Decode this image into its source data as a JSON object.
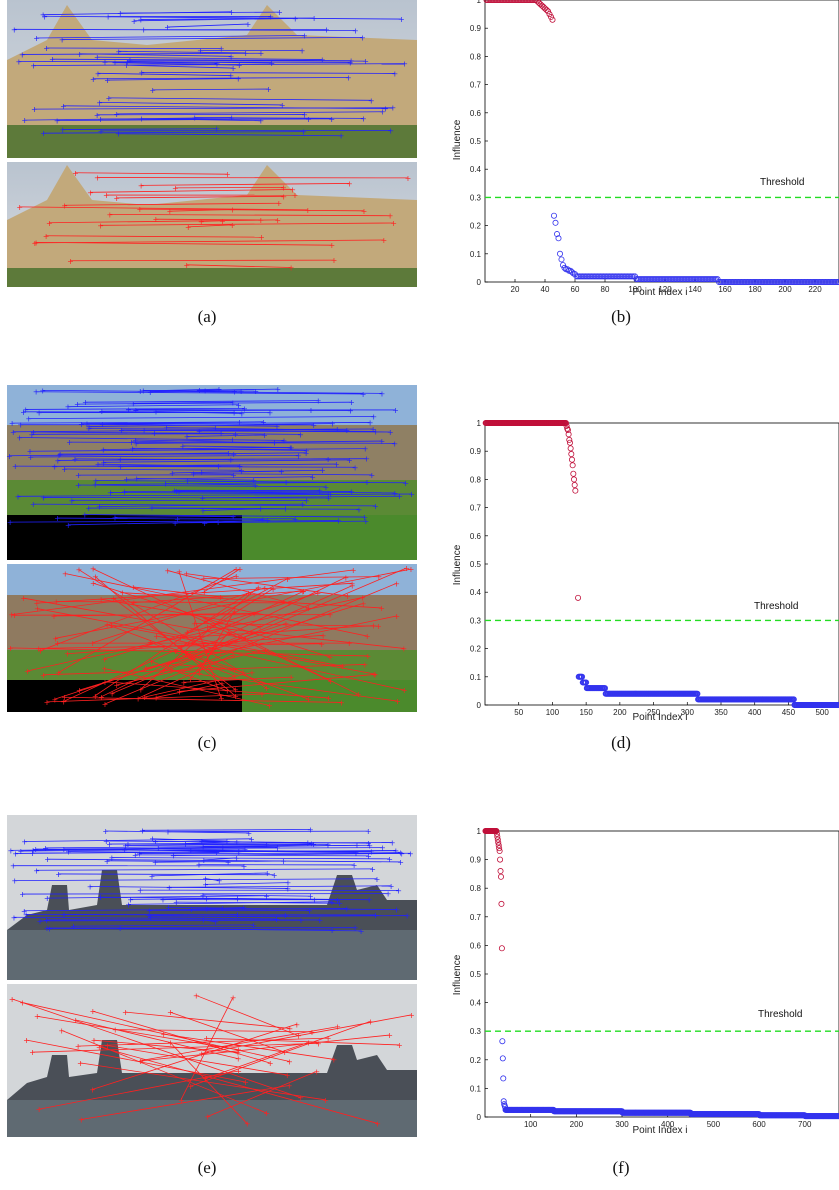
{
  "captions": [
    "(a)",
    "(b)",
    "(c)",
    "(d)",
    "(e)",
    "(f)"
  ],
  "match_images": [
    {
      "scene": "building",
      "colors": {
        "inlier": "#2020ff",
        "outlier": "#ff2020"
      }
    },
    {
      "scene": "campus",
      "colors": {
        "inlier": "#2020ff",
        "outlier": "#ff2020"
      }
    },
    {
      "scene": "skyline",
      "colors": {
        "inlier": "#2020ff",
        "outlier": "#ff2020"
      }
    }
  ],
  "colors": {
    "inlier_marker": "#3333ee",
    "outlier_marker": "#c0103a",
    "threshold_line": "#22dd22",
    "axis": "#000000"
  },
  "chart_data": [
    {
      "type": "scatter",
      "xlabel": "Point Index i",
      "ylabel": "Influence",
      "xlim": [
        0,
        236
      ],
      "ylim": [
        0,
        1
      ],
      "xticks": [
        20,
        40,
        60,
        80,
        100,
        120,
        140,
        160,
        180,
        200,
        220
      ],
      "yticks": [
        0,
        0.1,
        0.2,
        0.3,
        0.4,
        0.5,
        0.6,
        0.7,
        0.8,
        0.9,
        1
      ],
      "threshold": {
        "value": 0.3,
        "label": "Threshold"
      },
      "series": [
        {
          "segments": [
            [
              1,
              34,
              1.0
            ],
            [
              35,
              35,
              0.995
            ],
            [
              36,
              36,
              0.99
            ],
            [
              37,
              37,
              0.985
            ],
            [
              38,
              38,
              0.98
            ],
            [
              39,
              39,
              0.975
            ],
            [
              40,
              40,
              0.97
            ],
            [
              41,
              41,
              0.965
            ],
            [
              42,
              42,
              0.96
            ],
            [
              43,
              43,
              0.95
            ],
            [
              44,
              44,
              0.94
            ],
            [
              45,
              45,
              0.93
            ]
          ]
        },
        {
          "segments": [
            [
              46,
              46,
              0.235
            ],
            [
              47,
              47,
              0.21
            ],
            [
              48,
              48,
              0.17
            ],
            [
              49,
              49,
              0.155
            ],
            [
              50,
              50,
              0.1
            ],
            [
              51,
              51,
              0.08
            ],
            [
              52,
              52,
              0.06
            ],
            [
              53,
              53,
              0.05
            ],
            [
              54,
              54,
              0.045
            ],
            [
              55,
              55,
              0.045
            ],
            [
              56,
              56,
              0.04
            ],
            [
              57,
              57,
              0.04
            ],
            [
              58,
              58,
              0.035
            ],
            [
              59,
              59,
              0.03
            ],
            [
              60,
              60,
              0.028
            ],
            [
              61,
              100,
              0.02
            ],
            [
              101,
              155,
              0.01
            ],
            [
              156,
              236,
              0.0
            ]
          ]
        }
      ]
    },
    {
      "type": "scatter",
      "xlabel": "Point Index i",
      "ylabel": "Influence",
      "xlim": [
        0,
        525
      ],
      "ylim": [
        0,
        1
      ],
      "xticks": [
        50,
        100,
        150,
        200,
        250,
        300,
        350,
        400,
        450,
        500
      ],
      "yticks": [
        0,
        0.1,
        0.2,
        0.3,
        0.4,
        0.5,
        0.6,
        0.7,
        0.8,
        0.9,
        1
      ],
      "threshold": {
        "value": 0.3,
        "label": "Threshold"
      },
      "series": [
        {
          "segments": [
            [
              1,
              120,
              1.0
            ],
            [
              121,
              121,
              0.99
            ],
            [
              122,
              122,
              0.98
            ],
            [
              123,
              123,
              0.975
            ],
            [
              124,
              124,
              0.96
            ],
            [
              125,
              125,
              0.94
            ],
            [
              126,
              126,
              0.93
            ],
            [
              127,
              127,
              0.91
            ],
            [
              128,
              128,
              0.89
            ],
            [
              129,
              129,
              0.87
            ],
            [
              130,
              130,
              0.85
            ],
            [
              131,
              131,
              0.82
            ],
            [
              132,
              132,
              0.8
            ],
            [
              133,
              133,
              0.78
            ],
            [
              134,
              134,
              0.76
            ],
            [
              138,
              138,
              0.38
            ]
          ]
        },
        {
          "segments": [
            [
              139,
              144,
              0.1
            ],
            [
              145,
              150,
              0.08
            ],
            [
              151,
              178,
              0.06
            ],
            [
              179,
              315,
              0.04
            ],
            [
              316,
              458,
              0.02
            ],
            [
              459,
              525,
              0.0
            ]
          ]
        }
      ]
    },
    {
      "type": "scatter",
      "xlabel": "Point Index i",
      "ylabel": "Influence",
      "xlim": [
        0,
        775
      ],
      "ylim": [
        0,
        1
      ],
      "xticks": [
        100,
        200,
        300,
        400,
        500,
        600,
        700
      ],
      "yticks": [
        0,
        0.1,
        0.2,
        0.3,
        0.4,
        0.5,
        0.6,
        0.7,
        0.8,
        0.9,
        1
      ],
      "threshold": {
        "value": 0.3,
        "label": "Threshold"
      },
      "series": [
        {
          "segments": [
            [
              1,
              25,
              1.0
            ],
            [
              26,
              26,
              0.99
            ],
            [
              27,
              27,
              0.98
            ],
            [
              28,
              28,
              0.97
            ],
            [
              29,
              29,
              0.96
            ],
            [
              30,
              30,
              0.95
            ],
            [
              31,
              31,
              0.94
            ],
            [
              32,
              32,
              0.93
            ],
            [
              33,
              33,
              0.9
            ],
            [
              34,
              34,
              0.86
            ],
            [
              35,
              35,
              0.84
            ],
            [
              36,
              36,
              0.745
            ],
            [
              37,
              37,
              0.59
            ]
          ]
        },
        {
          "segments": [
            [
              38,
              38,
              0.265
            ],
            [
              39,
              39,
              0.205
            ],
            [
              40,
              40,
              0.135
            ],
            [
              41,
              41,
              0.055
            ],
            [
              42,
              42,
              0.045
            ],
            [
              43,
              43,
              0.04
            ],
            [
              44,
              44,
              0.035
            ],
            [
              45,
              150,
              0.025
            ],
            [
              151,
              300,
              0.02
            ],
            [
              301,
              450,
              0.015
            ],
            [
              451,
              600,
              0.01
            ],
            [
              601,
              700,
              0.006
            ],
            [
              701,
              775,
              0.003
            ]
          ]
        }
      ]
    }
  ]
}
